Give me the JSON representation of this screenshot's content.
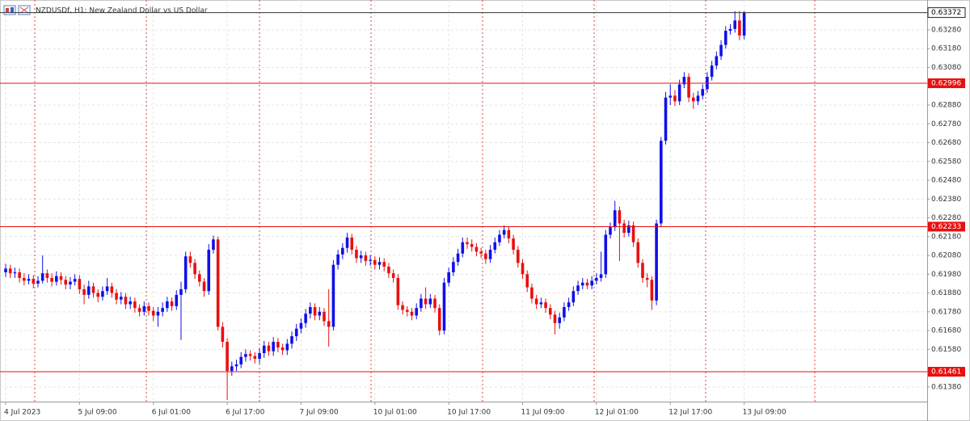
{
  "chart_data": {
    "type": "candlestick",
    "title": "NZDUSDf, H1:  New Zealand Dollar vs US Dollar",
    "categories": [
      "4 Jul 2023",
      null,
      null,
      null,
      null,
      null,
      null,
      null,
      null,
      null,
      null,
      null,
      null,
      null,
      null,
      null,
      "5 Jul 09:00",
      null,
      null,
      null,
      null,
      null,
      null,
      null,
      null,
      null,
      null,
      null,
      null,
      null,
      null,
      null,
      "6 Jul 01:00",
      null,
      null,
      null,
      null,
      null,
      null,
      null,
      null,
      null,
      null,
      null,
      null,
      null,
      null,
      null,
      "6 Jul 17:00",
      null,
      null,
      null,
      null,
      null,
      null,
      null,
      null,
      null,
      null,
      null,
      null,
      null,
      null,
      null,
      "7 Jul 09:00",
      null,
      null,
      null,
      null,
      null,
      null,
      null,
      null,
      null,
      null,
      null,
      null,
      null,
      null,
      null,
      "10 Jul 01:00",
      null,
      null,
      null,
      null,
      null,
      null,
      null,
      null,
      null,
      null,
      null,
      null,
      null,
      null,
      null,
      "10 Jul 17:00",
      null,
      null,
      null,
      null,
      null,
      null,
      null,
      null,
      null,
      null,
      null,
      null,
      null,
      null,
      null,
      "11 Jul 09:00",
      null,
      null,
      null,
      null,
      null,
      null,
      null,
      null,
      null,
      null,
      null,
      null,
      null,
      null,
      null,
      "12 Jul 01:00",
      null,
      null,
      null,
      null,
      null,
      null,
      null,
      null,
      null,
      null,
      null,
      null,
      null,
      null,
      null,
      "12 Jul 17:00",
      null,
      null,
      null,
      null,
      null,
      null,
      null,
      null,
      null,
      null,
      null,
      null,
      null,
      null,
      null,
      "13 Jul 09:00"
    ],
    "open": [
      0.6199,
      0.6201,
      0.61985,
      0.6199,
      0.6196,
      0.61945,
      0.61955,
      0.6193,
      0.61945,
      0.61985,
      0.6196,
      0.6194,
      0.6197,
      0.6195,
      0.61925,
      0.6194,
      0.61955,
      0.619,
      0.6187,
      0.61915,
      0.6188,
      0.6186,
      0.6189,
      0.61915,
      0.6188,
      0.61845,
      0.6186,
      0.6182,
      0.61835,
      0.618,
      0.6178,
      0.6181,
      0.61785,
      0.6176,
      0.6178,
      0.618,
      0.61835,
      0.6181,
      0.6187,
      0.619,
      0.62075,
      0.6204,
      0.6198,
      0.6194,
      0.6189,
      0.6211,
      0.62165,
      0.617,
      0.6162,
      0.61465,
      0.6149,
      0.615,
      0.6154,
      0.61555,
      0.61545,
      0.6153,
      0.6156,
      0.616,
      0.6157,
      0.6162,
      0.6159,
      0.61575,
      0.6161,
      0.6165,
      0.6169,
      0.6172,
      0.6177,
      0.61805,
      0.6176,
      0.6178,
      0.6173,
      0.617,
      0.6203,
      0.62085,
      0.6212,
      0.62175,
      0.6211,
      0.62065,
      0.6208,
      0.6205,
      0.62055,
      0.6203,
      0.62045,
      0.6202,
      0.61985,
      0.6196,
      0.61815,
      0.6179,
      0.6178,
      0.6176,
      0.618,
      0.6185,
      0.6182,
      0.6185,
      0.618,
      0.6168,
      0.61935,
      0.6199,
      0.62045,
      0.6209,
      0.6215,
      0.6214,
      0.62125,
      0.621,
      0.6209,
      0.6206,
      0.6211,
      0.6215,
      0.6219,
      0.62215,
      0.6217,
      0.6211,
      0.6204,
      0.6198,
      0.6191,
      0.6185,
      0.6182,
      0.6183,
      0.618,
      0.61765,
      0.6172,
      0.6175,
      0.61805,
      0.6183,
      0.6189,
      0.6192,
      0.61935,
      0.6192,
      0.61945,
      0.6196,
      0.6198,
      0.6219,
      0.6223,
      0.6232,
      0.6225,
      0.622,
      0.6224,
      0.6215,
      0.6204,
      0.6196,
      0.6195,
      0.6184,
      0.6225,
      0.6269,
      0.6292,
      0.6293,
      0.629,
      0.6299,
      0.6303,
      0.6292,
      0.629,
      0.6293,
      0.62965,
      0.6303,
      0.6309,
      0.6314,
      0.632,
      0.63275,
      0.63285,
      0.6333,
      0.6325
    ],
    "high": [
      0.62035,
      0.6203,
      0.62015,
      0.6201,
      0.61985,
      0.6198,
      0.61975,
      0.6197,
      0.6208,
      0.62005,
      0.61985,
      0.61995,
      0.6199,
      0.6197,
      0.61965,
      0.6198,
      0.61975,
      0.61925,
      0.61945,
      0.61935,
      0.619,
      0.61915,
      0.6196,
      0.61935,
      0.619,
      0.61885,
      0.6188,
      0.6186,
      0.61855,
      0.6182,
      0.61835,
      0.6183,
      0.61805,
      0.61805,
      0.6183,
      0.6186,
      0.61855,
      0.61895,
      0.6194,
      0.621,
      0.621,
      0.6206,
      0.62,
      0.6196,
      0.6214,
      0.62185,
      0.6218,
      0.61725,
      0.6164,
      0.61515,
      0.61525,
      0.61565,
      0.6158,
      0.61575,
      0.61565,
      0.61585,
      0.61625,
      0.6162,
      0.61645,
      0.6164,
      0.6161,
      0.61635,
      0.61675,
      0.61715,
      0.61745,
      0.61795,
      0.6183,
      0.61825,
      0.61805,
      0.618,
      0.619,
      0.62055,
      0.6211,
      0.62145,
      0.622,
      0.62195,
      0.6213,
      0.62105,
      0.621,
      0.6208,
      0.62075,
      0.6207,
      0.62065,
      0.6204,
      0.62005,
      0.6198,
      0.61835,
      0.6181,
      0.618,
      0.61825,
      0.61875,
      0.6191,
      0.61875,
      0.6187,
      0.6182,
      0.6196,
      0.62015,
      0.6207,
      0.62115,
      0.62175,
      0.62175,
      0.62165,
      0.62145,
      0.6212,
      0.6211,
      0.62135,
      0.62175,
      0.62215,
      0.6224,
      0.62235,
      0.6219,
      0.6213,
      0.6206,
      0.62,
      0.6193,
      0.6187,
      0.61855,
      0.6185,
      0.6182,
      0.61785,
      0.61775,
      0.6183,
      0.61855,
      0.61915,
      0.61945,
      0.6196,
      0.61955,
      0.6197,
      0.61985,
      0.621,
      0.62215,
      0.62255,
      0.6237,
      0.6234,
      0.6227,
      0.62265,
      0.6226,
      0.6217,
      0.6206,
      0.61985,
      0.6197,
      0.6227,
      0.6271,
      0.6295,
      0.6299,
      0.6296,
      0.63015,
      0.63055,
      0.6305,
      0.62945,
      0.62955,
      0.6299,
      0.63055,
      0.63115,
      0.63165,
      0.63225,
      0.633,
      0.6331,
      0.6338,
      0.6338,
      0.6338
    ],
    "low": [
      0.61965,
      0.6196,
      0.6196,
      0.61935,
      0.6192,
      0.61925,
      0.61905,
      0.6191,
      0.6193,
      0.61935,
      0.61915,
      0.6192,
      0.61925,
      0.619,
      0.619,
      0.6192,
      0.61875,
      0.6182,
      0.6185,
      0.61855,
      0.6183,
      0.6184,
      0.6187,
      0.61855,
      0.6182,
      0.6182,
      0.61795,
      0.61795,
      0.61775,
      0.61755,
      0.6176,
      0.6176,
      0.6173,
      0.617,
      0.61755,
      0.6178,
      0.61785,
      0.6179,
      0.6163,
      0.6188,
      0.62015,
      0.61955,
      0.61915,
      0.6186,
      0.6187,
      0.6209,
      0.6168,
      0.6159,
      0.6131,
      0.6144,
      0.61465,
      0.6148,
      0.61515,
      0.6152,
      0.61505,
      0.61505,
      0.61535,
      0.61545,
      0.61545,
      0.61565,
      0.6155,
      0.6155,
      0.61585,
      0.61625,
      0.61665,
      0.61695,
      0.61745,
      0.61735,
      0.61735,
      0.61705,
      0.61595,
      0.6168,
      0.62005,
      0.6206,
      0.62095,
      0.62085,
      0.6204,
      0.6204,
      0.62025,
      0.62025,
      0.62005,
      0.62005,
      0.61995,
      0.6196,
      0.61935,
      0.6179,
      0.61765,
      0.61755,
      0.61735,
      0.6174,
      0.6178,
      0.61795,
      0.618,
      0.61775,
      0.61655,
      0.6166,
      0.61915,
      0.6197,
      0.62025,
      0.6207,
      0.62115,
      0.621,
      0.62075,
      0.62065,
      0.62035,
      0.6204,
      0.6209,
      0.6213,
      0.6217,
      0.62145,
      0.62085,
      0.62015,
      0.61955,
      0.61885,
      0.61825,
      0.61795,
      0.618,
      0.61775,
      0.6174,
      0.6166,
      0.6169,
      0.6173,
      0.61785,
      0.6181,
      0.6187,
      0.619,
      0.619,
      0.619,
      0.61925,
      0.6194,
      0.6196,
      0.6217,
      0.6221,
      0.6205,
      0.62175,
      0.6218,
      0.62125,
      0.62015,
      0.61935,
      0.6191,
      0.6179,
      0.61815,
      0.6223,
      0.6267,
      0.6288,
      0.62875,
      0.6288,
      0.6297,
      0.62895,
      0.6286,
      0.6288,
      0.6291,
      0.62945,
      0.6301,
      0.6307,
      0.6312,
      0.6318,
      0.63255,
      0.63265,
      0.63225,
      0.6323
    ],
    "close": [
      0.6201,
      0.61985,
      0.6199,
      0.6196,
      0.61945,
      0.61955,
      0.6193,
      0.61945,
      0.61985,
      0.6196,
      0.6194,
      0.6197,
      0.6195,
      0.61925,
      0.6194,
      0.61955,
      0.619,
      0.6187,
      0.61915,
      0.6188,
      0.6186,
      0.6189,
      0.61915,
      0.6188,
      0.61845,
      0.6186,
      0.6182,
      0.61835,
      0.618,
      0.6178,
      0.6181,
      0.61785,
      0.6176,
      0.6178,
      0.618,
      0.61835,
      0.6181,
      0.6187,
      0.619,
      0.62075,
      0.6204,
      0.6198,
      0.6194,
      0.6189,
      0.6211,
      0.62165,
      0.617,
      0.6162,
      0.61465,
      0.6149,
      0.615,
      0.6154,
      0.61555,
      0.61545,
      0.6153,
      0.6156,
      0.616,
      0.6157,
      0.6162,
      0.6159,
      0.61575,
      0.6161,
      0.6165,
      0.6169,
      0.6172,
      0.6177,
      0.61805,
      0.6176,
      0.6178,
      0.6173,
      0.617,
      0.6203,
      0.62085,
      0.6212,
      0.62175,
      0.6211,
      0.62065,
      0.6208,
      0.6205,
      0.62055,
      0.6203,
      0.62045,
      0.6202,
      0.61985,
      0.6196,
      0.61815,
      0.6179,
      0.6178,
      0.6176,
      0.618,
      0.6185,
      0.6182,
      0.6185,
      0.618,
      0.6168,
      0.61935,
      0.6199,
      0.62045,
      0.6209,
      0.6215,
      0.6214,
      0.62125,
      0.621,
      0.6209,
      0.6206,
      0.6211,
      0.6215,
      0.6219,
      0.62215,
      0.6217,
      0.6211,
      0.6204,
      0.6198,
      0.6191,
      0.6185,
      0.6182,
      0.6183,
      0.618,
      0.61765,
      0.6172,
      0.6175,
      0.61805,
      0.6183,
      0.6189,
      0.6192,
      0.61935,
      0.6192,
      0.61945,
      0.6196,
      0.6198,
      0.6219,
      0.6223,
      0.6232,
      0.6225,
      0.622,
      0.6224,
      0.6215,
      0.6204,
      0.6196,
      0.6195,
      0.6184,
      0.6225,
      0.6269,
      0.6292,
      0.6293,
      0.629,
      0.6299,
      0.6303,
      0.6292,
      0.629,
      0.6293,
      0.62965,
      0.6303,
      0.6309,
      0.6314,
      0.632,
      0.63275,
      0.63285,
      0.6333,
      0.6325,
      0.63372
    ],
    "up_color": "#1010e8",
    "down_color": "#e81010",
    "ylim": [
      0.61302,
      0.63439
    ],
    "yticks": [
      {
        "value": 0.6328,
        "label": "0.63280"
      },
      {
        "value": 0.6318,
        "label": "0.63180"
      },
      {
        "value": 0.6308,
        "label": "0.63080"
      },
      {
        "value": 0.6288,
        "label": "0.62880"
      },
      {
        "value": 0.6278,
        "label": "0.62780"
      },
      {
        "value": 0.6268,
        "label": "0.62680"
      },
      {
        "value": 0.6258,
        "label": "0.62580"
      },
      {
        "value": 0.6248,
        "label": "0.62480"
      },
      {
        "value": 0.6238,
        "label": "0.62380"
      },
      {
        "value": 0.6228,
        "label": "0.62280"
      },
      {
        "value": 0.6218,
        "label": "0.62180"
      },
      {
        "value": 0.6208,
        "label": "0.62080"
      },
      {
        "value": 0.6198,
        "label": "0.61980"
      },
      {
        "value": 0.6188,
        "label": "0.61880"
      },
      {
        "value": 0.6178,
        "label": "0.61780"
      },
      {
        "value": 0.6168,
        "label": "0.61680"
      },
      {
        "value": 0.6158,
        "label": "0.61580"
      },
      {
        "value": 0.6138,
        "label": "0.61380"
      }
    ],
    "levels": [
      0.62996,
      0.62233,
      0.61461
    ],
    "level_color": "#e81010",
    "current_price": 0.63372,
    "grid": true
  }
}
